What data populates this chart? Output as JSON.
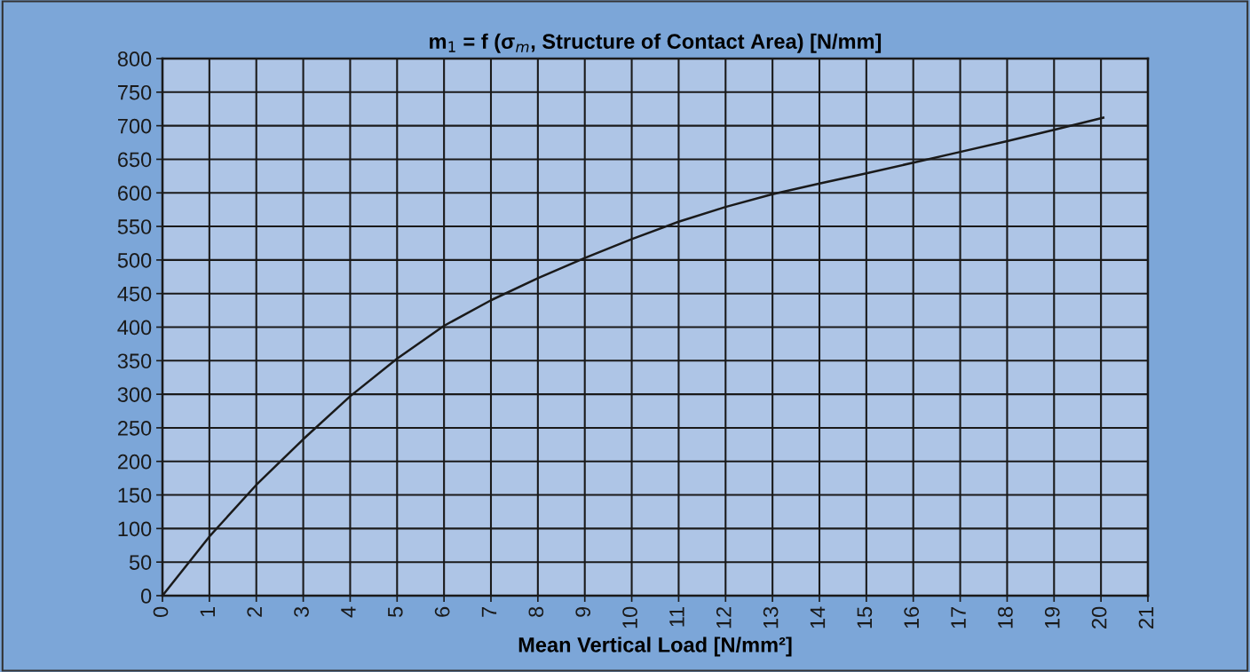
{
  "chart_data": {
    "type": "line",
    "title": "m$_{1}$ = f (σ$_{m}$, Structure of Contact Area) [N/mm]",
    "xlabel": "Mean Vertical Load [N/mm²]",
    "x": [
      0,
      1,
      2,
      3,
      4,
      5,
      6,
      7,
      8,
      9,
      10,
      11,
      12,
      13,
      14,
      15,
      16,
      17,
      18,
      19,
      20.05
    ],
    "series": [
      {
        "color": "#1a1a1a",
        "values": [
          0,
          88,
          165,
          233,
          297,
          353,
          402,
          440,
          473,
          503,
          531,
          557,
          579,
          598,
          614,
          629,
          645,
          661,
          677,
          694,
          712
        ]
      }
    ],
    "xlim": [
      0,
      21
    ],
    "xticks": [
      0,
      1,
      2,
      3,
      4,
      5,
      6,
      7,
      8,
      9,
      10,
      11,
      12,
      13,
      14,
      15,
      16,
      17,
      18,
      19,
      20,
      21
    ],
    "ylim": [
      0,
      800
    ],
    "yticks": [
      0,
      50,
      100,
      150,
      200,
      250,
      300,
      350,
      400,
      450,
      500,
      550,
      600,
      650,
      700,
      750,
      800
    ],
    "grid": true,
    "marker": "none",
    "line_style": "solid"
  }
}
